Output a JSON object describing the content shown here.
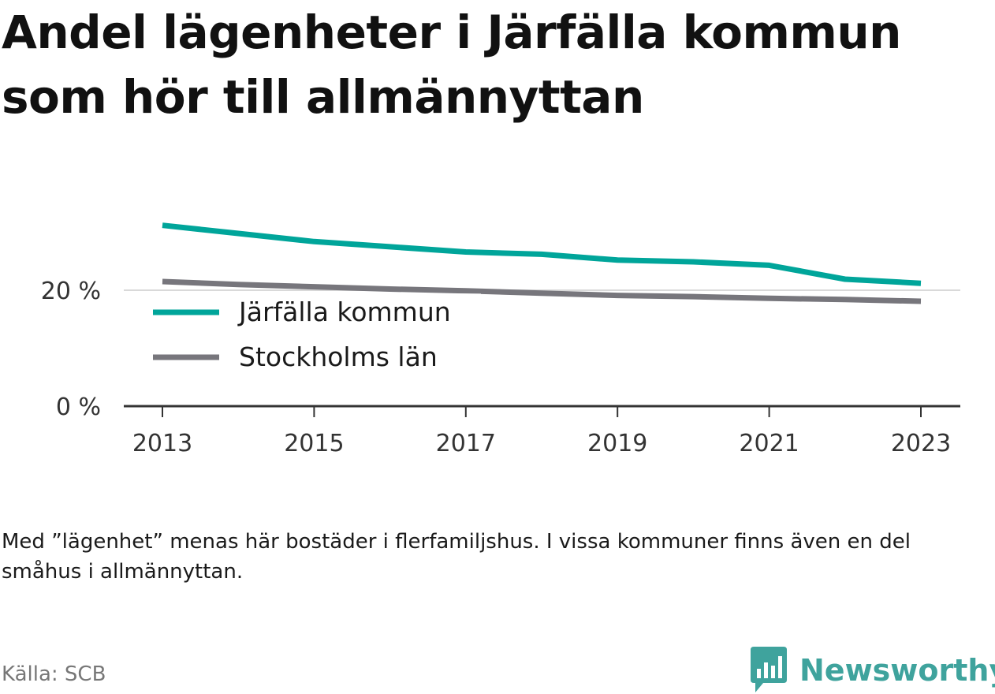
{
  "chart_data": {
    "type": "line",
    "title": "Andel lägenheter i Järfälla kommun som hör till allmännyttan",
    "x": [
      2013,
      2014,
      2015,
      2016,
      2017,
      2018,
      2019,
      2020,
      2021,
      2022,
      2023
    ],
    "x_ticks": [
      "2013",
      "2015",
      "2017",
      "2019",
      "2021",
      "2023"
    ],
    "y_ticks": [
      {
        "value": 0,
        "label": "0 %"
      },
      {
        "value": 20,
        "label": "20 %"
      }
    ],
    "ylim": [
      0,
      30
    ],
    "grid": "horizontal at 20 %",
    "legend_position": "inside-left",
    "series": [
      {
        "name": "Järfälla kommun",
        "color": "#00a59a",
        "values": [
          31.2,
          29.8,
          28.4,
          27.5,
          26.6,
          26.2,
          25.2,
          24.9,
          24.3,
          21.9,
          21.2
        ]
      },
      {
        "name": "Stockholms län",
        "color": "#77767c",
        "values": [
          21.5,
          21.0,
          20.6,
          20.2,
          19.9,
          19.5,
          19.1,
          18.9,
          18.6,
          18.4,
          18.1
        ]
      }
    ]
  },
  "note": "Med ”lägenhet” menas här bostäder i flerfamiljshus. I vissa kommuner finns även en del småhus i allmännyttan.",
  "source": "Källa: SCB",
  "brand": {
    "name": "Newsworthy",
    "color": "#3fa39d",
    "icon": "newsworthy-logo-icon"
  }
}
